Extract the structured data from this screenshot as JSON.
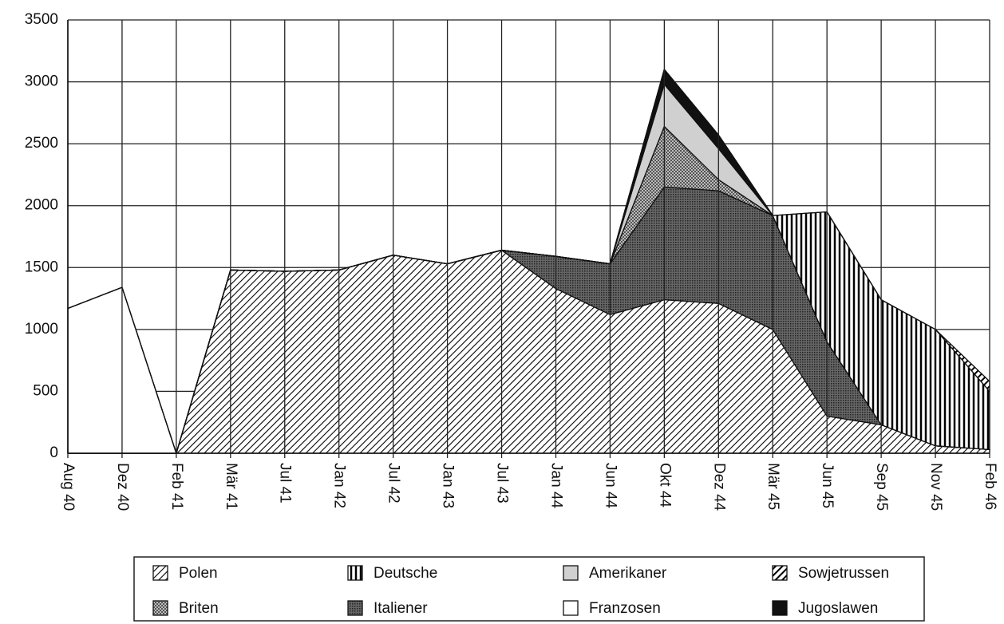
{
  "chart_data": {
    "type": "stacked_area",
    "categories": [
      "Aug 40",
      "Dez 40",
      "Feb 41",
      "Mär 41",
      "Jul 41",
      "Jan 42",
      "Jul 42",
      "Jan 43",
      "Jul 43",
      "Jan 44",
      "Jun 44",
      "Okt 44",
      "Dez 44",
      "Mär 45",
      "Jun 45",
      "Sep 45",
      "Nov 45",
      "Feb 46"
    ],
    "series": [
      {
        "name": "Polen",
        "color": "#000000",
        "pattern": "diagonal",
        "values": [
          0,
          0,
          0,
          1480,
          1470,
          1480,
          1600,
          1530,
          1640,
          1330,
          1120,
          1240,
          1210,
          1000,
          300,
          230,
          60,
          30
        ]
      },
      {
        "name": "Italiener",
        "color": "#4a4a4a",
        "pattern": "dots",
        "values": [
          0,
          0,
          0,
          0,
          0,
          0,
          0,
          0,
          0,
          260,
          410,
          910,
          910,
          920,
          600,
          0,
          0,
          0
        ]
      },
      {
        "name": "Briten",
        "color": "#888888",
        "pattern": "crosshatch",
        "values": [
          0,
          0,
          0,
          0,
          0,
          0,
          0,
          0,
          0,
          0,
          0,
          490,
          90,
          0,
          0,
          0,
          0,
          0
        ]
      },
      {
        "name": "Amerikaner",
        "color": "#d0d0d0",
        "pattern": "solid",
        "values": [
          0,
          0,
          0,
          0,
          0,
          0,
          0,
          0,
          0,
          0,
          0,
          340,
          250,
          0,
          0,
          0,
          0,
          0
        ]
      },
      {
        "name": "Jugoslawen",
        "color": "#111111",
        "pattern": "solid",
        "values": [
          0,
          0,
          0,
          0,
          0,
          0,
          0,
          0,
          0,
          0,
          0,
          120,
          110,
          0,
          0,
          0,
          0,
          0
        ]
      },
      {
        "name": "Franzosen",
        "color": "#ffffff",
        "pattern": "solid",
        "values": [
          1170,
          1340,
          0,
          0,
          0,
          0,
          0,
          0,
          0,
          0,
          0,
          0,
          0,
          0,
          0,
          0,
          0,
          0
        ]
      },
      {
        "name": "Deutsche",
        "color": "#000000",
        "pattern": "vertical",
        "values": [
          0,
          0,
          0,
          0,
          0,
          0,
          0,
          0,
          0,
          0,
          0,
          0,
          0,
          0,
          1050,
          1010,
          940,
          470
        ]
      },
      {
        "name": "Sowjetrussen",
        "color": "#000000",
        "pattern": "diagonal-bold",
        "values": [
          0,
          0,
          0,
          0,
          0,
          0,
          0,
          0,
          0,
          0,
          0,
          0,
          0,
          0,
          0,
          0,
          0,
          80
        ]
      }
    ],
    "ylim": [
      0,
      3500
    ],
    "yticks": [
      0,
      500,
      1000,
      1500,
      2000,
      2500,
      3000,
      3500
    ],
    "grid": true,
    "legend": "bottom"
  }
}
